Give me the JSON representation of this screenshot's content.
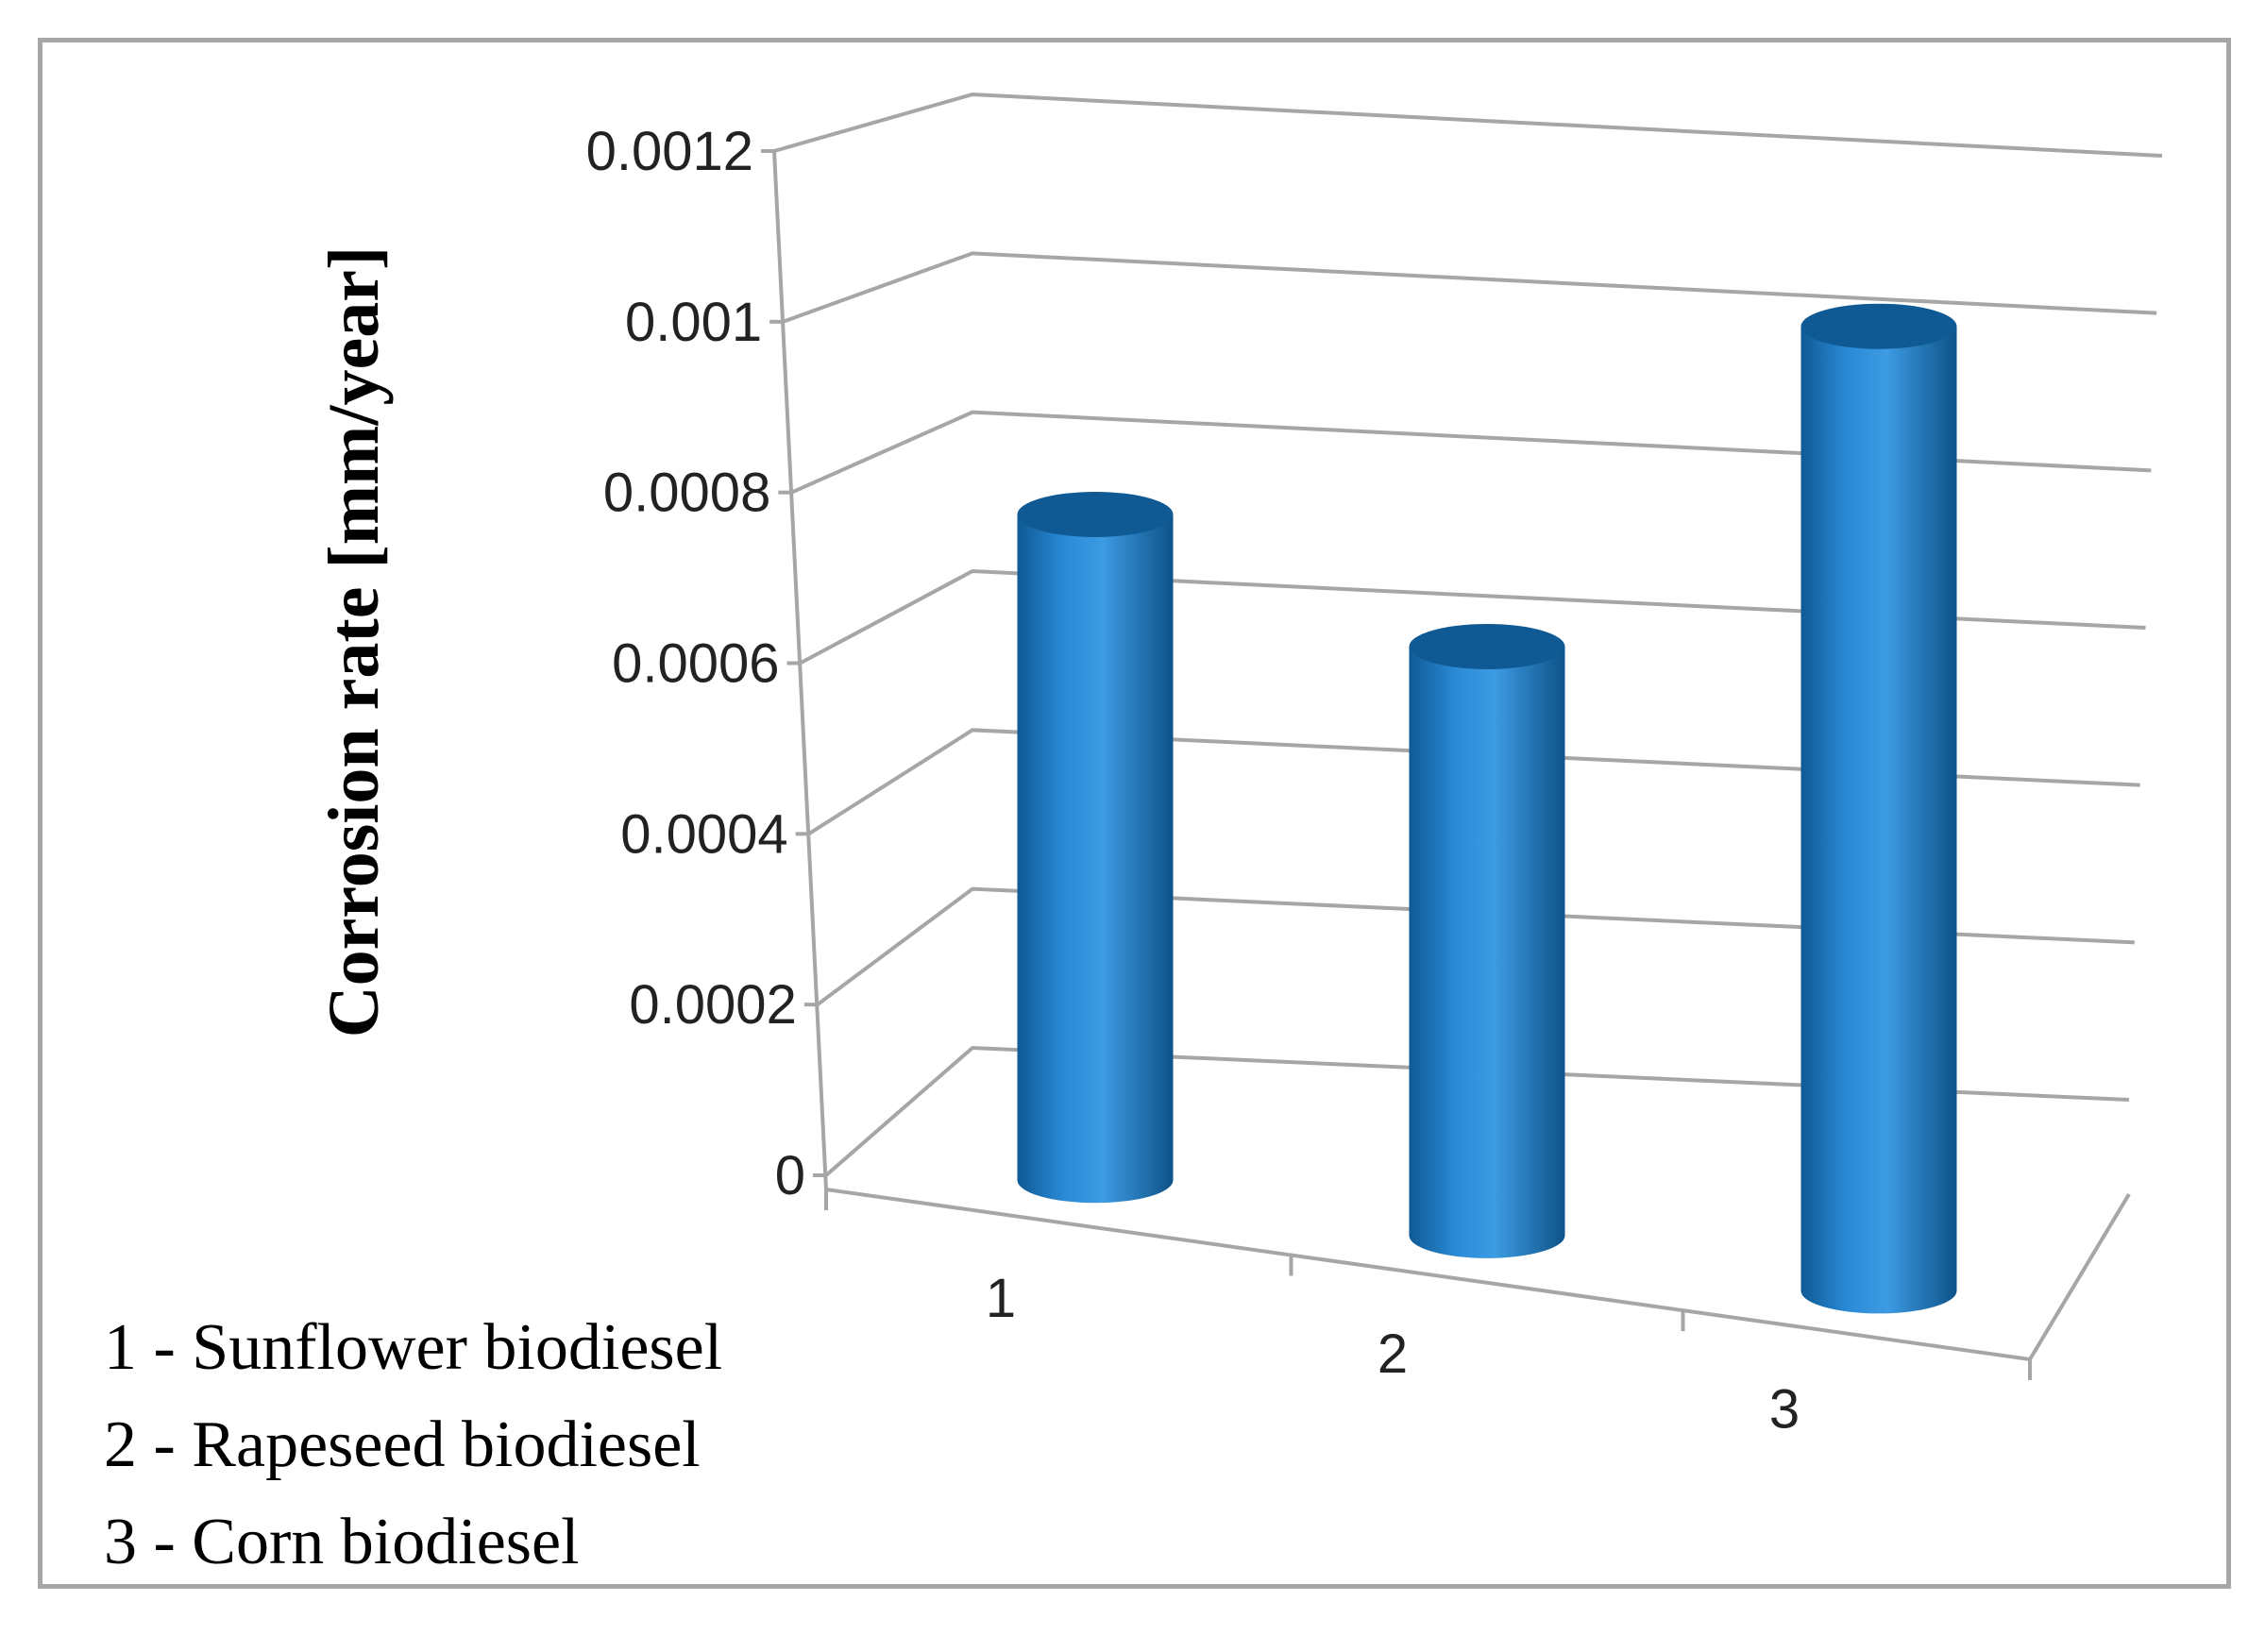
{
  "chart_data": {
    "type": "bar",
    "style": "3d-cylinder",
    "categories": [
      "1",
      "2",
      "3"
    ],
    "series": [
      {
        "values": [
          0.00078,
          0.00069,
          0.00113
        ]
      }
    ],
    "ylabel": "Corrosion rate  [mm/year]",
    "xlabel": "",
    "title": "",
    "ylim": [
      0,
      0.0012
    ],
    "yticks": [
      "0",
      "0.0002",
      "0.0004",
      "0.0006",
      "0.0008",
      "0.001",
      "0.0012"
    ],
    "grid": true,
    "legend_position": "bottom-left",
    "legend": [
      "1 - Sunflower biodiesel",
      "2 - Rapeseed biodiesel",
      "3 - Corn biodiesel"
    ],
    "colors": {
      "bar": "#1f78c1",
      "bar_dark": "#0f5a94",
      "bar_light": "#4aa3e6",
      "grid": "#a6a6a6"
    }
  }
}
